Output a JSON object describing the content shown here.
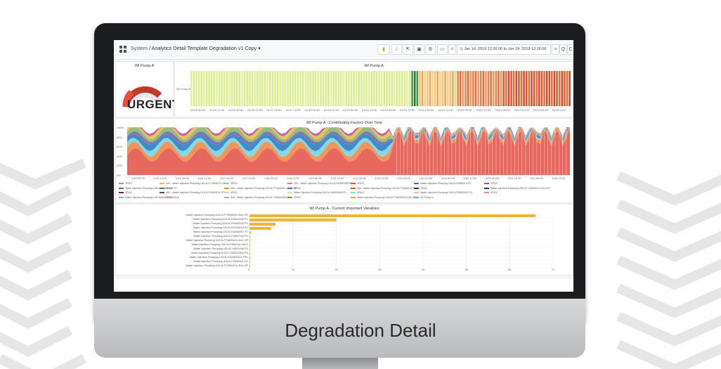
{
  "header": {
    "breadcrumb_root": "System",
    "breadcrumb_separator": "/",
    "dashboard_title": "Analytics Detail Template Degradation v1 Copy",
    "time_range": "Jan 14, 2019 12:26:00 to Jan 24, 2019 12:26:00",
    "zoom_out_label": "Q",
    "refresh_label": "C",
    "prev_label": "<",
    "next_label": ">"
  },
  "gauge_panel": {
    "title": "WI Pump A",
    "status": "URGENT",
    "colors": [
      "#c0392b",
      "#e74c3c",
      "#e8e8e8"
    ]
  },
  "health_panel": {
    "title": "WI Pump A",
    "row_label": "WI Pump A",
    "x_ticks": [
      "01/15 00:00",
      "01/15 12:00",
      "01/16 00:00",
      "01/16 12:00",
      "01/17 00:00",
      "01/17 12:00",
      "01/18 00:00",
      "01/18 12:00",
      "01/19 00:00",
      "01/19 12:00",
      "01/20 00:00",
      "01/20 12:00",
      "01/21 00:00",
      "01/21 12:00",
      "01/22 00:00",
      "01/22 12:00",
      "01/23 00:00",
      "01/23 12:00",
      "01/24 00:00",
      "01/24 12:0"
    ]
  },
  "factors_panel": {
    "title": "WI Pump A : Contributing Factors Over Time",
    "y_ticks": [
      "100%",
      "80%",
      "60%",
      "40%",
      "20%",
      "0%"
    ],
    "x_ticks": [
      "1/15 00:00",
      "1/15 12:00",
      "1/16 00:00",
      "1/16 12:00",
      "1/17 00:00",
      "1/17 12:00",
      "1/18 00:00",
      "1/18 12:00",
      "1/19 00:00",
      "1/19 12:00",
      "1/20 00:00",
      "1/20 12:00",
      "1/21 00:00",
      "1/21 12:00",
      "1/22 00:00",
      "1/22 12:00",
      "1/23 00:00",
      "1/23 12:00",
      "1/24 00:00",
      "1/24 12:00"
    ],
    "legend": [
      {
        "text": "VRDC",
        "color": "#7eb26d"
      },
      {
        "text": "400 - Water Injection Pumping UGLN-FT4506074.OP",
        "color": "#eab839"
      },
      {
        "text": "VRDC",
        "color": "#6ed0e0"
      },
      {
        "text": "430 - Water Injection Pumping UGLN-XI4502380.PV",
        "color": "#ef843c"
      },
      {
        "text": "VRDC",
        "color": "#e24d42"
      },
      {
        "text": "Water Injection Pumping UGLN-PI45001A.PV",
        "color": "#1f78c1"
      },
      {
        "text": "VRDC",
        "color": "#ba43a9"
      },
      {
        "text": "Water Injection Pumping UGLN-XI4500037.TT",
        "color": "#705da0"
      },
      {
        "text": "VRDC",
        "color": "#508642"
      },
      {
        "text": "400 - Water Injection Pumping UGLN-FT4500211.LS41.OP",
        "color": "#cca300"
      },
      {
        "text": "VRDC",
        "color": "#447ebc"
      },
      {
        "text": "430 - Water Injection Pumping UGLN-FT4500111.PV",
        "color": "#c15c17"
      },
      {
        "text": "VRDC",
        "color": "#890f02"
      },
      {
        "text": "Water Injection Pumping UGLN-FT4509111.LS41.OP",
        "color": "#0a437c"
      },
      {
        "text": "VRDC",
        "color": "#6d1f62"
      },
      {
        "text": "400 - Water Injection Pumping UGLN-PI4500111.TPH",
        "color": "#584477"
      },
      {
        "text": "VRDC",
        "color": "#b7dbab"
      },
      {
        "text": "Water Injection Pumping UGLN-HI4500406.PV",
        "color": "#f4d598"
      },
      {
        "text": "VRDC",
        "color": "#70dbed"
      },
      {
        "text": "Water Injection Pumping UGLN-PI4500042.PV",
        "color": "#f9ba8f"
      },
      {
        "text": "VRDC",
        "color": "#f29191"
      },
      {
        "text": "Water Injection Pumping UGLN-FI45001A.XALD",
        "color": "#82b5d8"
      },
      {
        "text": "VRDC",
        "color": "#e5a8e2"
      },
      {
        "text": "400 - Water Injection Pumping UGLN-TI4500205A.PV",
        "color": "#aea2e0"
      },
      {
        "text": "VRDC",
        "color": "#629e51"
      },
      {
        "text": "Water Injection Pumping UGLN-FT4509411LS41.OP",
        "color": "#e5ac0e"
      },
      {
        "text": "WI Pump A",
        "color": "#64b0c8"
      }
    ]
  },
  "variables_panel": {
    "title": "WI Pump A - Current Important Variables",
    "chart_data": {
      "type": "bar",
      "orientation": "horizontal",
      "title": "WI Pump A - Current Important Variables",
      "categories": [
        "Water Injection Pumping UGLN-FT4506011LS41.OP",
        "Water Injection Pumping UGLN-YI4502330.PV",
        "Water Injection Pumping UGLN-PI4490042.PV",
        "Water Injection Pumping UGLN-PI4506116.PV",
        "Water Injection Pumping UGLN-XI4500037.TT",
        "Water Injection Pumping UGLN-P450011A.PV",
        "Water Injection Pumping UGLN-FT4509411LS41.OP",
        "Water Injection Pumping UGLN-P45001A.XALD",
        "Water Injection Pumping UGLN-Y4502406.PV",
        "Water Injection Pumping UGLN-TI4502205A.PV",
        "Water Injection Pumping UGLN-FQI4500111.TPH",
        "Water Injection Pumping UGLN-FI4500111.PV",
        "Water Injection Pumping UGLN-FT4500211LS41.OP"
      ],
      "values": [
        66,
        20,
        6,
        5,
        0.3,
        0.2,
        0.15,
        0.1,
        0.1,
        0.1,
        0.1,
        0.1,
        0.1
      ],
      "xlim": [
        0,
        70
      ],
      "x_ticks": [
        0,
        10,
        20,
        30,
        40,
        50,
        60,
        70
      ],
      "bar_color": "#eab839"
    }
  },
  "footer": {
    "title": "Degradation Detail"
  }
}
